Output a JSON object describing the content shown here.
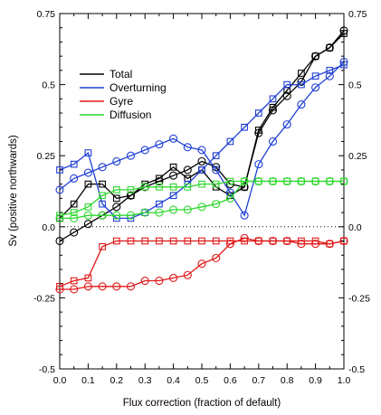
{
  "chart_data": {
    "type": "line",
    "xlabel": "Flux correction (fraction of default)",
    "ylabel": "Sv (positive northwards)",
    "xlim": [
      0.0,
      1.0
    ],
    "ylim": [
      -0.5,
      0.75
    ],
    "xticks": [
      "0.0",
      "0.1",
      "0.2",
      "0.3",
      "0.4",
      "0.5",
      "0.6",
      "0.7",
      "0.8",
      "0.9",
      "1.0"
    ],
    "yticks": [
      "-0.5",
      "-0.25",
      "0.0",
      "0.25",
      "0.5",
      "0.75"
    ],
    "zero_line": "dotted",
    "grid": false,
    "legend_position": "upper-left",
    "x": [
      0.0,
      0.05,
      0.1,
      0.15,
      0.2,
      0.25,
      0.3,
      0.35,
      0.4,
      0.45,
      0.5,
      0.55,
      0.6,
      0.65,
      0.7,
      0.75,
      0.8,
      0.85,
      0.9,
      0.95,
      1.0
    ],
    "series": [
      {
        "name": "Total",
        "color": "#000000",
        "marker": "square",
        "values": [
          0.03,
          0.08,
          0.15,
          0.15,
          0.1,
          0.11,
          0.15,
          0.17,
          0.21,
          0.17,
          0.2,
          0.14,
          0.11,
          0.14,
          0.34,
          0.42,
          0.48,
          0.54,
          0.6,
          0.63,
          0.68
        ]
      },
      {
        "name": "Total",
        "color": "#000000",
        "marker": "circle",
        "values": [
          -0.05,
          -0.02,
          0.01,
          0.04,
          0.07,
          0.11,
          0.14,
          0.16,
          0.18,
          0.2,
          0.23,
          0.21,
          0.15,
          0.14,
          0.33,
          0.41,
          0.46,
          0.51,
          0.6,
          0.63,
          0.69
        ]
      },
      {
        "name": "Overturning",
        "color": "#1f3fd6",
        "marker": "square",
        "values": [
          0.2,
          0.22,
          0.26,
          0.08,
          0.03,
          0.03,
          0.05,
          0.08,
          0.11,
          0.15,
          0.2,
          0.25,
          0.3,
          0.35,
          0.4,
          0.45,
          0.5,
          0.5,
          0.53,
          0.55,
          0.57
        ]
      },
      {
        "name": "Overturning",
        "color": "#1f3fd6",
        "marker": "circle",
        "values": [
          0.13,
          0.17,
          0.19,
          0.21,
          0.23,
          0.25,
          0.27,
          0.29,
          0.31,
          0.28,
          0.27,
          0.2,
          0.12,
          0.04,
          0.22,
          0.3,
          0.36,
          0.43,
          0.49,
          0.53,
          0.58
        ]
      },
      {
        "name": "Gyre",
        "color": "#e01818",
        "marker": "square",
        "values": [
          -0.21,
          -0.19,
          -0.18,
          -0.07,
          -0.05,
          -0.05,
          -0.05,
          -0.05,
          -0.05,
          -0.05,
          -0.05,
          -0.05,
          -0.05,
          -0.05,
          -0.05,
          -0.05,
          -0.05,
          -0.05,
          -0.05,
          -0.06,
          -0.05
        ]
      },
      {
        "name": "Gyre",
        "color": "#e01818",
        "marker": "circle",
        "values": [
          -0.22,
          -0.22,
          -0.21,
          -0.21,
          -0.21,
          -0.21,
          -0.19,
          -0.19,
          -0.18,
          -0.17,
          -0.13,
          -0.11,
          -0.06,
          -0.04,
          -0.05,
          -0.05,
          -0.05,
          -0.06,
          -0.06,
          -0.06,
          -0.05
        ]
      },
      {
        "name": "Diffusion",
        "color": "#2fd62f",
        "marker": "square",
        "values": [
          0.04,
          0.05,
          0.07,
          0.11,
          0.13,
          0.13,
          0.14,
          0.14,
          0.14,
          0.14,
          0.15,
          0.15,
          0.16,
          0.16,
          0.16,
          0.16,
          0.16,
          0.16,
          0.16,
          0.16,
          0.16
        ]
      },
      {
        "name": "Diffusion",
        "color": "#2fd62f",
        "marker": "circle",
        "values": [
          0.03,
          0.03,
          0.04,
          0.04,
          0.04,
          0.04,
          0.05,
          0.05,
          0.06,
          0.06,
          0.07,
          0.08,
          0.1,
          0.16,
          0.16,
          0.16,
          0.16,
          0.16,
          0.16,
          0.16,
          0.16
        ]
      }
    ],
    "legend": [
      {
        "label": "Total",
        "color": "#000000"
      },
      {
        "label": "Overturning",
        "color": "#1f3fd6"
      },
      {
        "label": "Gyre",
        "color": "#e01818"
      },
      {
        "label": "Diffusion",
        "color": "#2fd62f"
      }
    ]
  }
}
